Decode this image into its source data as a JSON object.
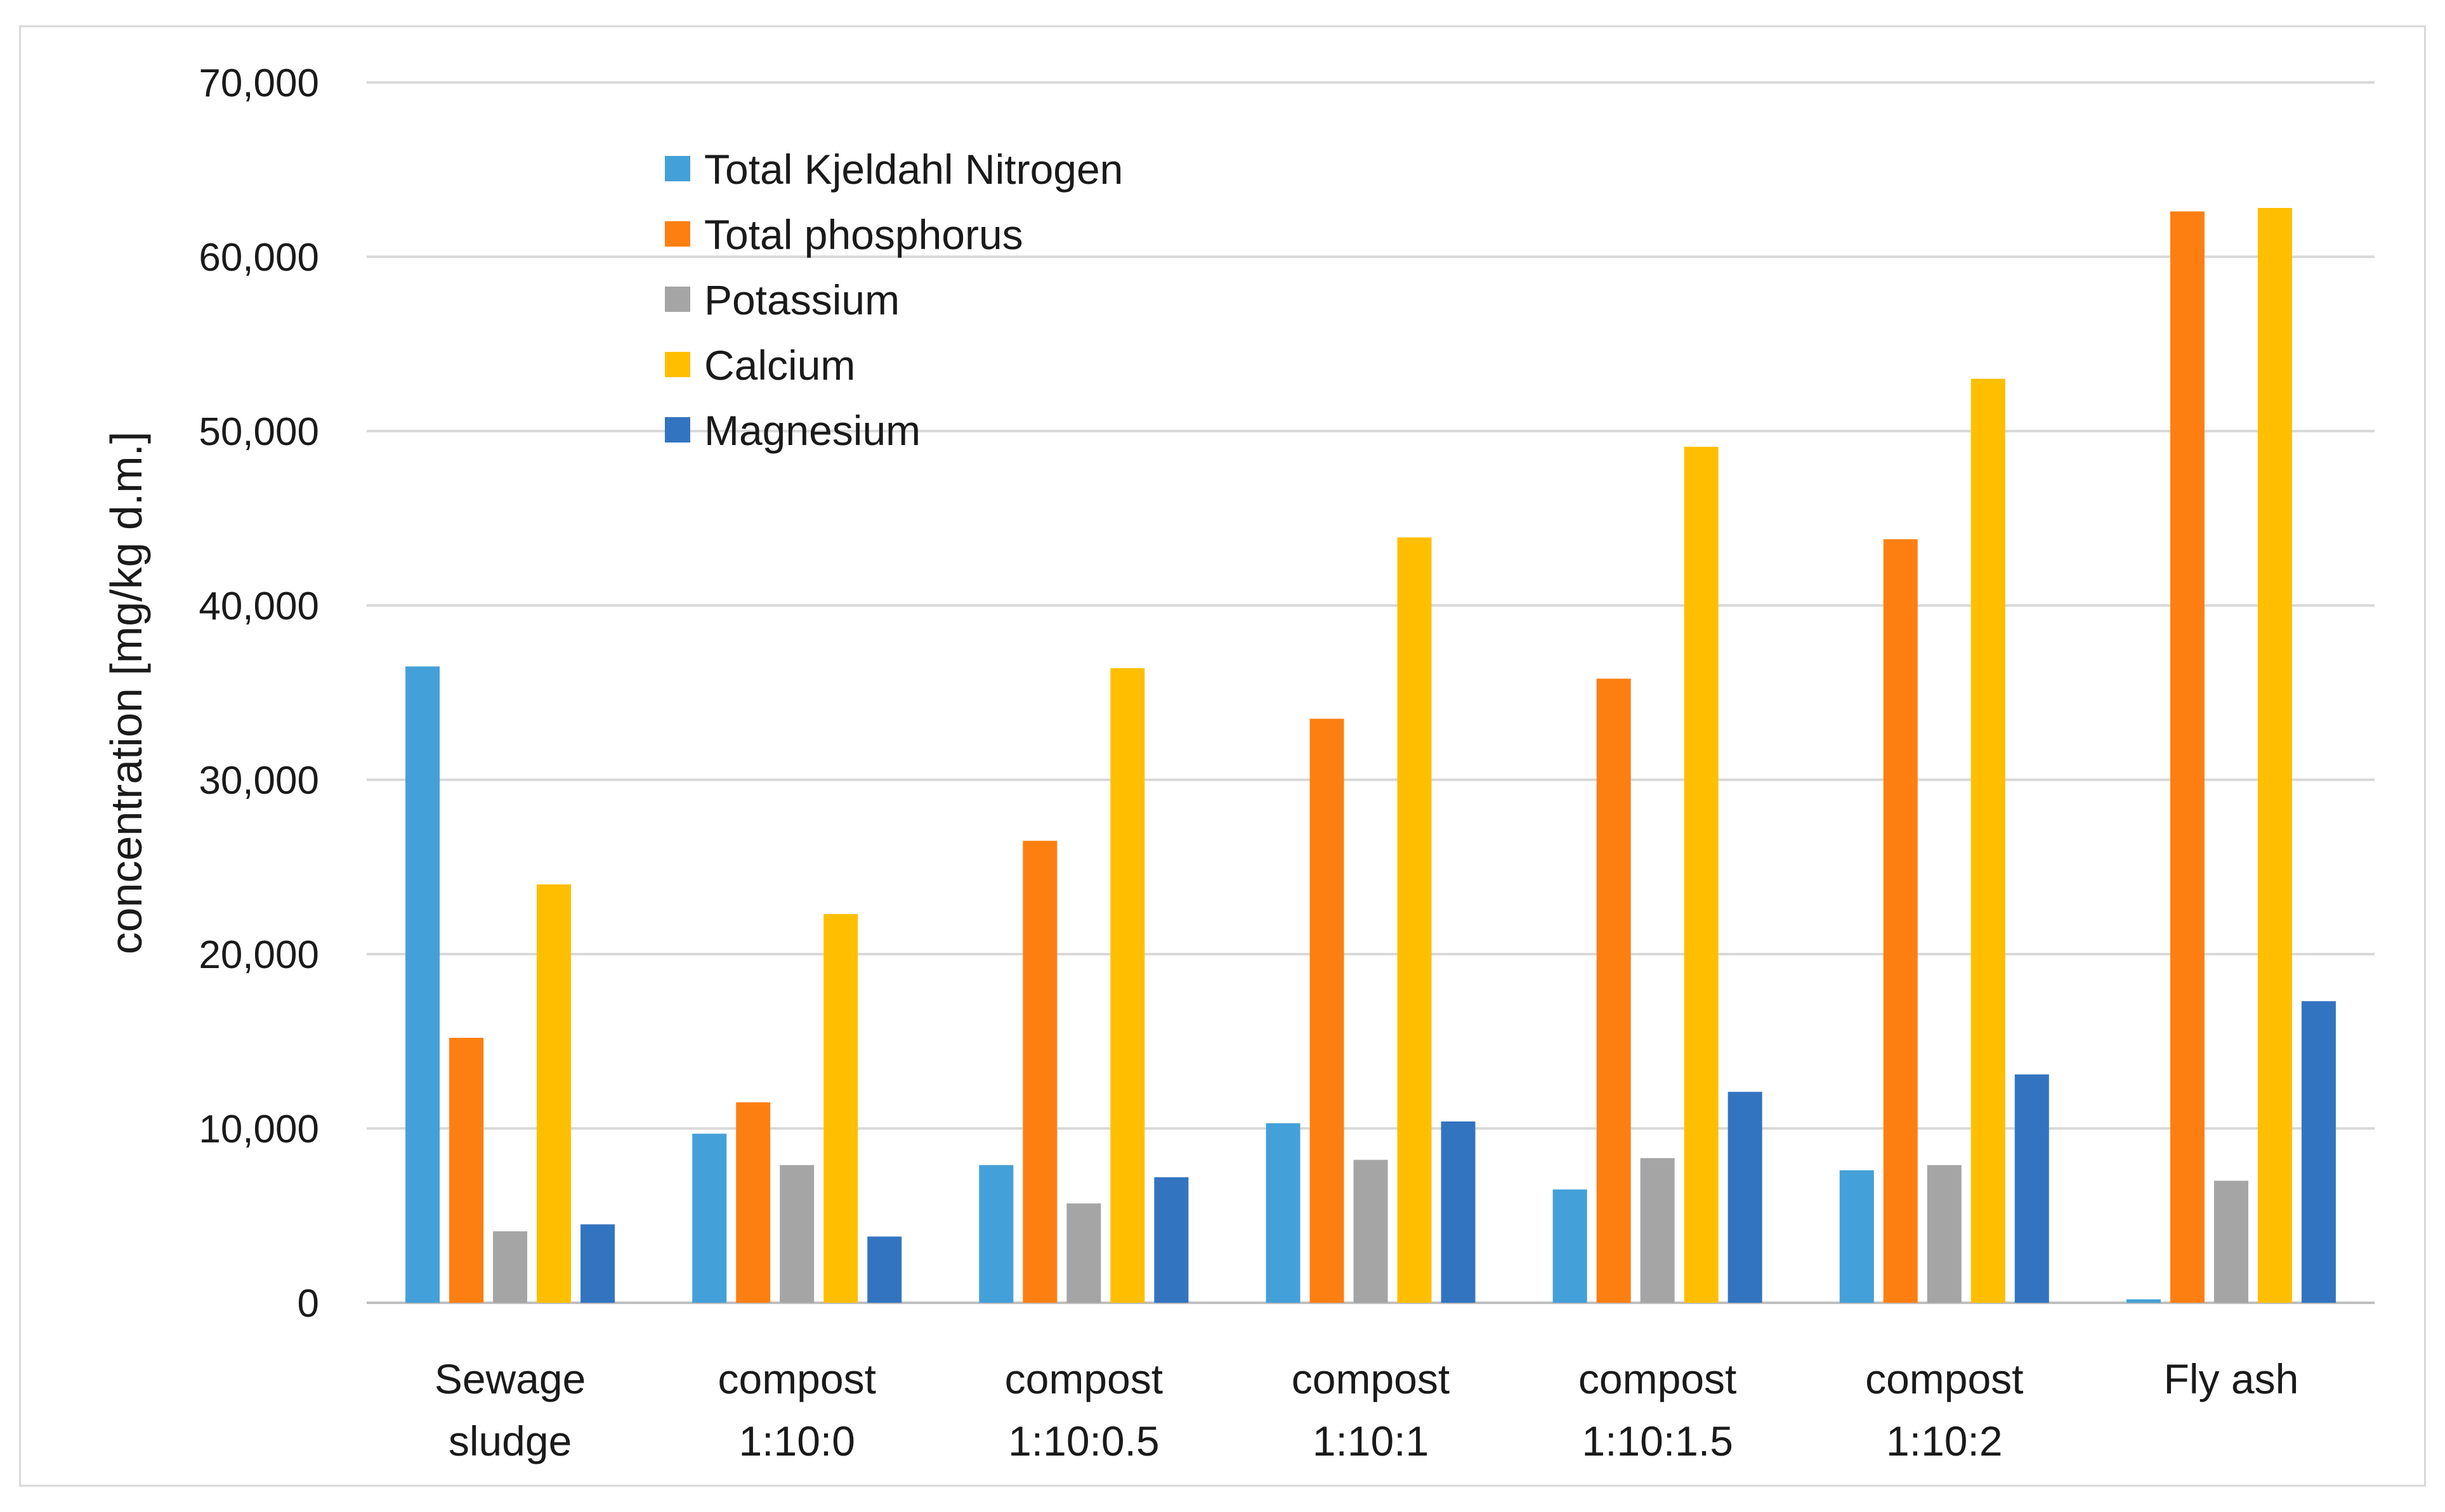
{
  "chart_data": {
    "type": "bar",
    "title": "",
    "xlabel": "",
    "ylabel": "concentration [mg/kg d.m.]",
    "ylim": [
      0,
      70000
    ],
    "yticks": [
      0,
      10000,
      20000,
      30000,
      40000,
      50000,
      60000,
      70000
    ],
    "ytick_labels": [
      "0",
      "10,000",
      "20,000",
      "30,000",
      "40,000",
      "50,000",
      "60,000",
      "70,000"
    ],
    "grid": true,
    "legend_position": "top-left",
    "categories": [
      [
        "Sewage",
        "sludge"
      ],
      [
        "compost",
        "1:10:0"
      ],
      [
        "compost",
        "1:10:0.5"
      ],
      [
        "compost",
        "1:10:1"
      ],
      [
        "compost",
        "1:10:1.5"
      ],
      [
        "compost",
        "1:10:2"
      ],
      [
        "Fly ash"
      ]
    ],
    "series": [
      {
        "name": "Total Kjeldahl Nitrogen",
        "color": "#44a0d8",
        "values": [
          36500,
          9700,
          7900,
          10300,
          6500,
          7600,
          200
        ]
      },
      {
        "name": "Total phosphorus",
        "color": "#fd7f12",
        "values": [
          15200,
          11500,
          26500,
          33500,
          35800,
          43800,
          62600
        ]
      },
      {
        "name": "Potassium",
        "color": "#a5a5a5",
        "values": [
          4100,
          7900,
          5700,
          8200,
          8300,
          7900,
          7000
        ]
      },
      {
        "name": "Calcium",
        "color": "#ffbf00",
        "values": [
          24000,
          22300,
          36400,
          43900,
          49100,
          53000,
          62800
        ]
      },
      {
        "name": "Magnesium",
        "color": "#3374c0",
        "values": [
          4500,
          3800,
          7200,
          10400,
          12100,
          13100,
          17300
        ]
      }
    ]
  }
}
